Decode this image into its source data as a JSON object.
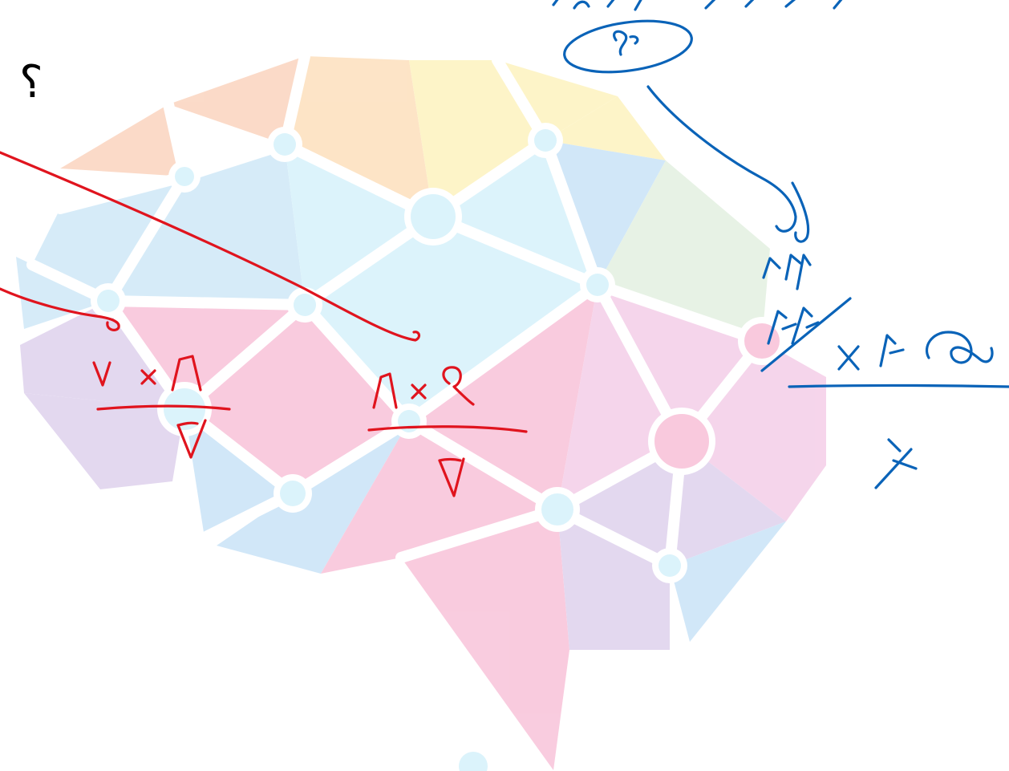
{
  "canvas": {
    "question_mark": "؟"
  },
  "brain_logo": {
    "palette": {
      "peach": "#fbd9c6",
      "orange": "#fde3c4",
      "yellow": "#fdf4c6",
      "light_blue": "#d4eaf8",
      "cyan": "#dbf3fb",
      "pink": "#f9c9dd",
      "magenta": "#f5d3ea",
      "lavender": "#e2d6ef",
      "sky": "#cfe6f8",
      "mint": "#e6f2e4"
    }
  },
  "annotations": {
    "red_ink_color": "#e0141e",
    "blue_ink_color": "#0a63b8"
  }
}
